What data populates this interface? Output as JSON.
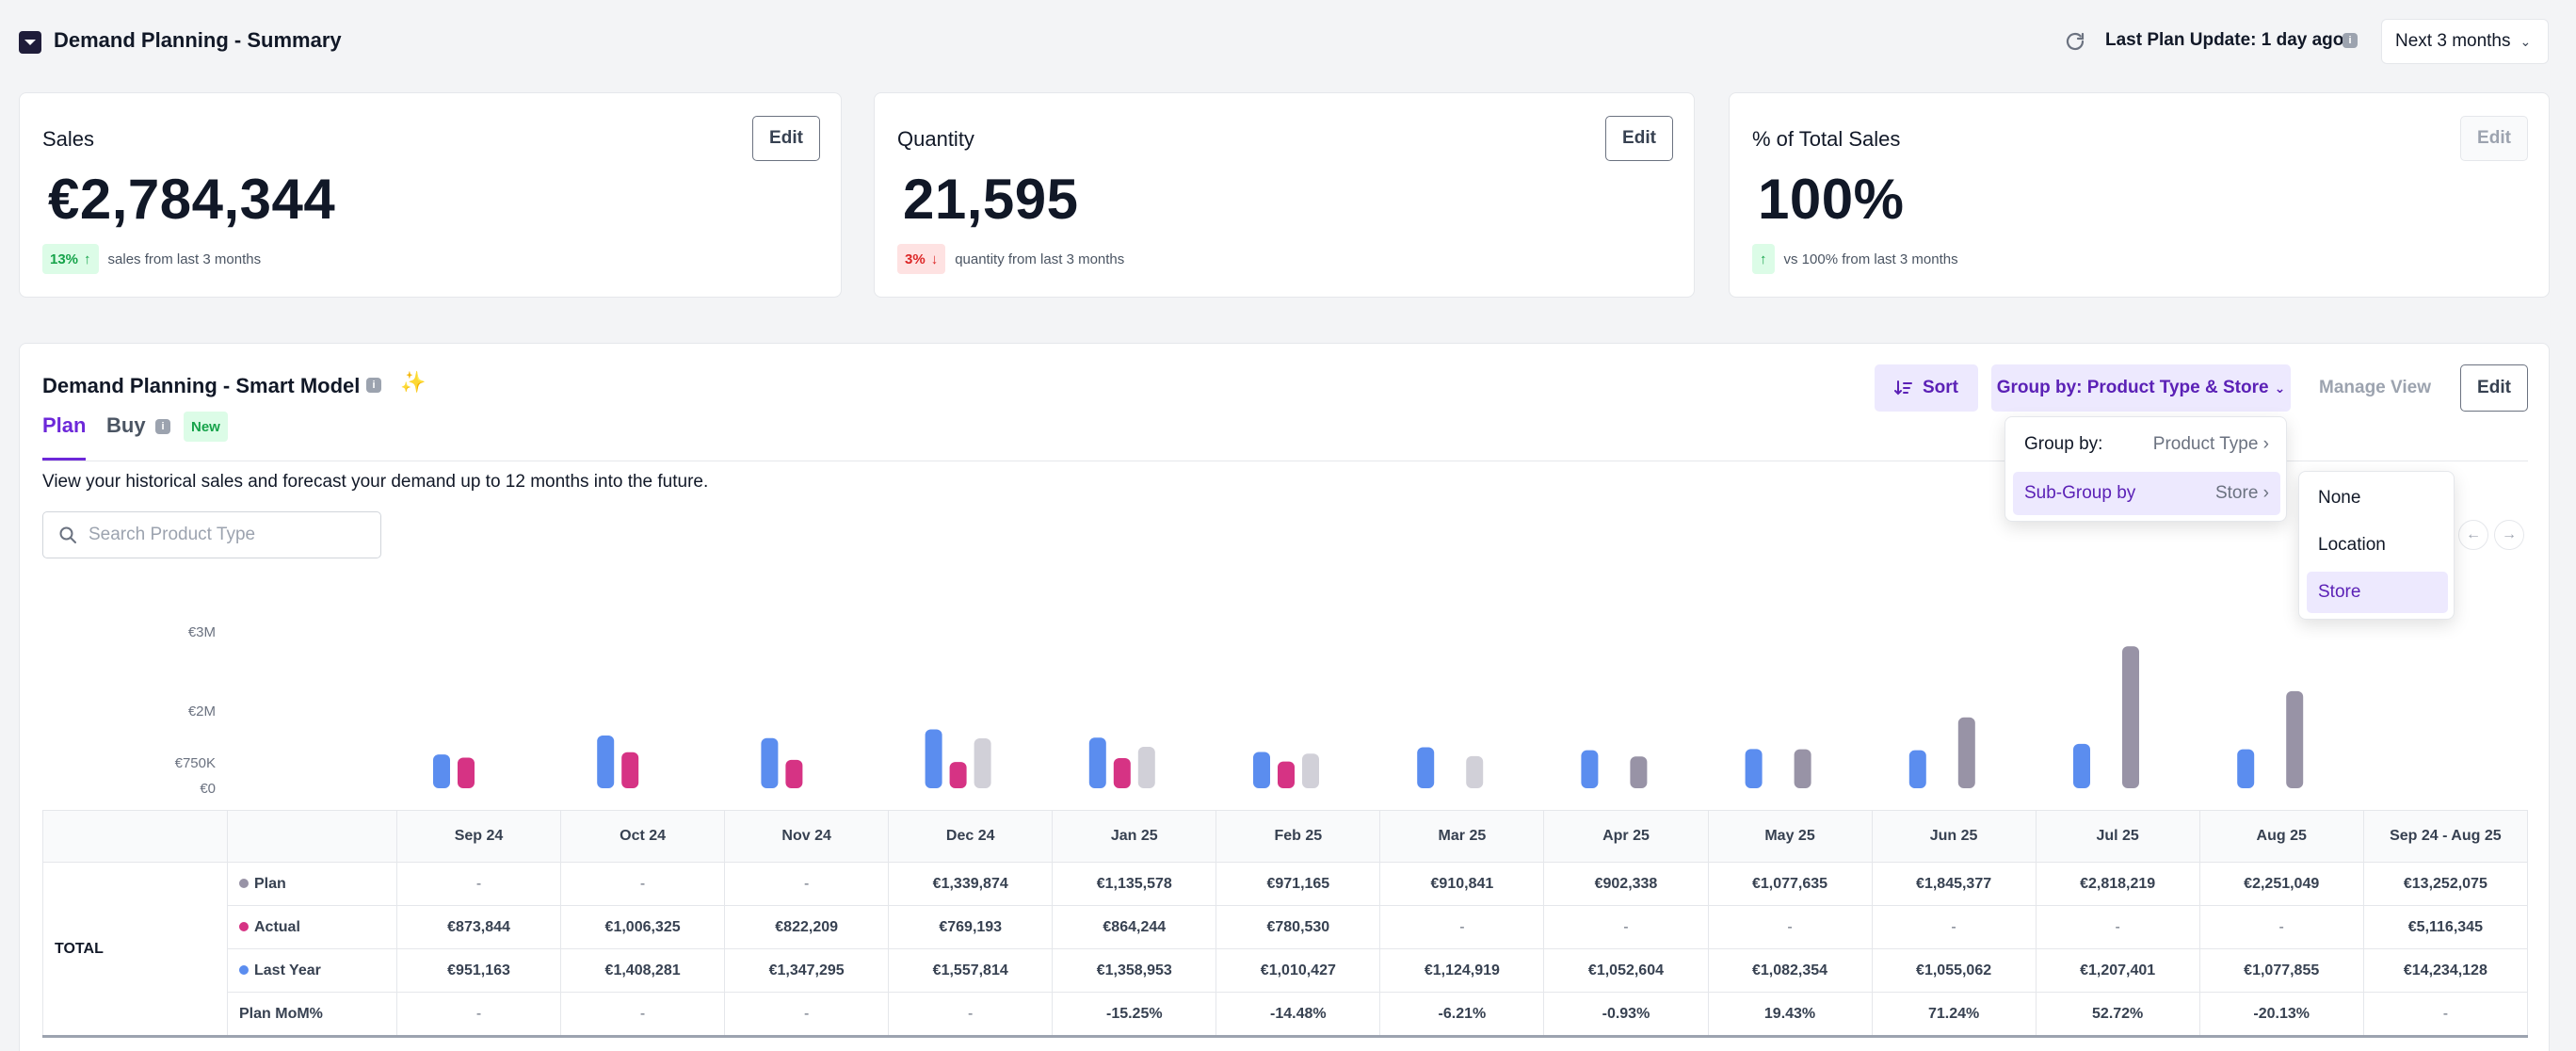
{
  "header": {
    "title": "Demand Planning - Summary",
    "last_update": "Last Plan Update: 1 day ago",
    "period": "Next 3 months"
  },
  "cards": [
    {
      "title": "Sales",
      "edit": "Edit",
      "value": "€2,784,344",
      "badge": "13%",
      "direction": "up",
      "trend_text": "sales from last 3 months"
    },
    {
      "title": "Quantity",
      "edit": "Edit",
      "value": "21,595",
      "badge": "3%",
      "direction": "down",
      "trend_text": "quantity from last 3 months"
    },
    {
      "title": "% of Total Sales",
      "edit": "Edit",
      "value": "100%",
      "badge": "",
      "direction": "up",
      "trend_text": "vs 100% from last 3 months"
    }
  ],
  "panel": {
    "title": "Demand Planning - Smart Model",
    "tabs": {
      "plan": "Plan",
      "buy": "Buy",
      "new_badge": "New"
    },
    "description": "View your historical sales and forecast your demand up to 12 months into the future.",
    "search_placeholder": "Search Product Type",
    "sort": "Sort",
    "group_by": "Group by: Product Type & Store",
    "manage_view": "Manage View",
    "edit": "Edit"
  },
  "dropdown": {
    "group_label": "Group by:",
    "group_value": "Product Type",
    "subgroup_label": "Sub-Group by",
    "subgroup_value": "Store",
    "options": [
      "None",
      "Location",
      "Store"
    ]
  },
  "colors": {
    "plan": "#9893a6",
    "actual": "#d63384",
    "last_year": "#5b8def",
    "accent": "#6d28d9"
  },
  "chart_data": {
    "type": "bar",
    "y_ticks": [
      "€3M",
      "€2M",
      "€750K",
      "€0"
    ],
    "categories": [
      "Sep 24",
      "Oct 24",
      "Nov 24",
      "Dec 24",
      "Jan 25",
      "Feb 25",
      "Mar 25",
      "Apr 25",
      "May 25",
      "Jun 25",
      "Jul 25",
      "Aug 25"
    ],
    "series": [
      {
        "name": "Last Year",
        "values": [
          951163,
          1408281,
          1347295,
          1557814,
          1358953,
          1010427,
          1124919,
          1052604,
          1082354,
          1055062,
          1207401,
          1077855
        ]
      },
      {
        "name": "Actual",
        "values": [
          873844,
          1006325,
          822209,
          769193,
          864244,
          780530,
          null,
          null,
          null,
          null,
          null,
          null
        ]
      },
      {
        "name": "Plan",
        "values": [
          null,
          null,
          null,
          1339874,
          1135578,
          971165,
          910841,
          902338,
          1077635,
          1845377,
          2818219,
          2251049
        ]
      }
    ]
  },
  "table": {
    "headers": [
      "Sep 24",
      "Oct 24",
      "Nov 24",
      "Dec 24",
      "Jan 25",
      "Feb 25",
      "Mar 25",
      "Apr 25",
      "May 25",
      "Jun 25",
      "Jul 25",
      "Aug 25",
      "Sep 24 - Aug 25"
    ],
    "group": "TOTAL",
    "rows": [
      {
        "label": "Plan",
        "dot": "#9893a6",
        "cells": [
          "-",
          "-",
          "-",
          "€1,339,874",
          "€1,135,578",
          "€971,165",
          "€910,841",
          "€902,338",
          "€1,077,635",
          "€1,845,377",
          "€2,818,219",
          "€2,251,049",
          "€13,252,075"
        ]
      },
      {
        "label": "Actual",
        "dot": "#d63384",
        "cells": [
          "€873,844",
          "€1,006,325",
          "€822,209",
          "€769,193",
          "€864,244",
          "€780,530",
          "-",
          "-",
          "-",
          "-",
          "-",
          "-",
          "€5,116,345"
        ]
      },
      {
        "label": "Last Year",
        "dot": "#5b8def",
        "cells": [
          "€951,163",
          "€1,408,281",
          "€1,347,295",
          "€1,557,814",
          "€1,358,953",
          "€1,010,427",
          "€1,124,919",
          "€1,052,604",
          "€1,082,354",
          "€1,055,062",
          "€1,207,401",
          "€1,077,855",
          "€14,234,128"
        ]
      },
      {
        "label": "Plan MoM%",
        "dot": "",
        "cells": [
          "-",
          "-",
          "-",
          "-",
          "-15.25%",
          "-14.48%",
          "-6.21%",
          "-0.93%",
          "19.43%",
          "71.24%",
          "52.72%",
          "-20.13%",
          "-"
        ]
      }
    ]
  }
}
